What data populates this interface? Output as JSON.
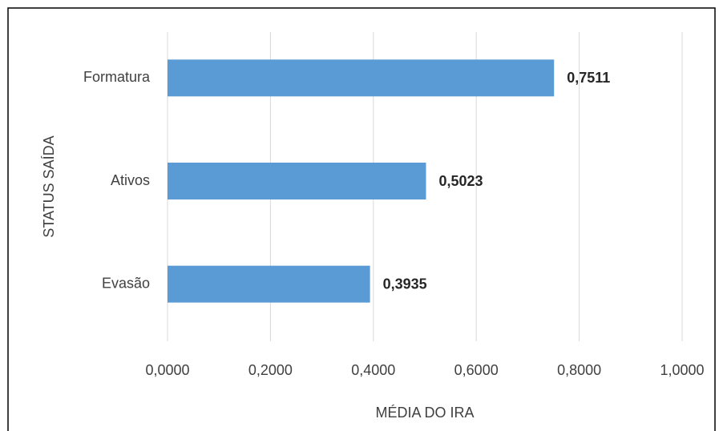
{
  "chart_data": {
    "type": "bar",
    "orientation": "horizontal",
    "x_label": "MÉDIA DO IRA",
    "y_label": "STATUS SAÍDA",
    "categories": [
      "Formatura",
      "Ativos",
      "Evasão"
    ],
    "values": [
      0.7511,
      0.5023,
      0.3935
    ],
    "value_labels": [
      "0,7511",
      "0,5023",
      "0,3935"
    ],
    "color": "#5b9bd5",
    "xlim": [
      0,
      1
    ],
    "xticks": [
      {
        "value": 0,
        "label": "0,0000"
      },
      {
        "value": 0.2,
        "label": "0,2000"
      },
      {
        "value": 0.4,
        "label": "0,4000"
      },
      {
        "value": 0.6,
        "label": "0,6000"
      },
      {
        "value": 0.8,
        "label": "0,8000"
      },
      {
        "value": 1,
        "label": "1,0000"
      }
    ],
    "grid": true
  }
}
